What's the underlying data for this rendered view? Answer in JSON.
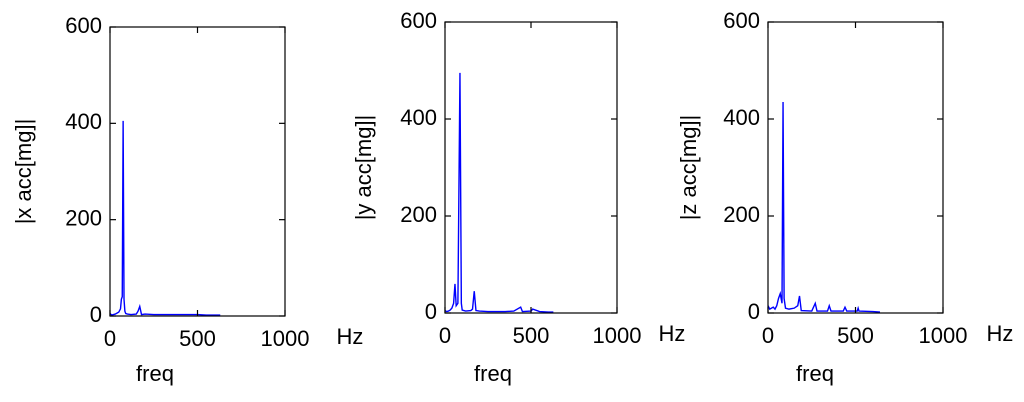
{
  "chart_data": [
    {
      "type": "line",
      "ylabel": "|x acc[mg]|",
      "xlabel": "freq",
      "unit_label": "Hz",
      "xlim": [
        0,
        1000
      ],
      "xticks": [
        0,
        500,
        1000
      ],
      "ylim": [
        0,
        600
      ],
      "yticks": [
        0,
        200,
        400,
        600
      ],
      "color": "#0000ff",
      "x": [
        0,
        10,
        20,
        30,
        40,
        50,
        60,
        65,
        70,
        75,
        80,
        85,
        90,
        100,
        120,
        150,
        160,
        170,
        180,
        200,
        250,
        300,
        350,
        400,
        450,
        500,
        550,
        600,
        630
      ],
      "values": [
        5,
        2,
        3,
        4,
        6,
        8,
        15,
        35,
        40,
        405,
        35,
        10,
        5,
        4,
        3,
        4,
        10,
        20,
        3,
        4,
        3,
        3,
        3,
        3,
        3,
        3,
        2,
        2,
        2
      ]
    },
    {
      "type": "line",
      "ylabel": "|y acc[mg]|",
      "xlabel": "freq",
      "unit_label": "Hz",
      "xlim": [
        0,
        1000
      ],
      "xticks": [
        0,
        500,
        1000
      ],
      "ylim": [
        0,
        600
      ],
      "yticks": [
        0,
        200,
        400,
        600
      ],
      "color": "#0000ff",
      "x": [
        0,
        10,
        20,
        30,
        40,
        50,
        58,
        65,
        75,
        87,
        95,
        100,
        120,
        150,
        160,
        170,
        180,
        200,
        250,
        300,
        350,
        400,
        440,
        450,
        500,
        510,
        550,
        600,
        630
      ],
      "values": [
        5,
        3,
        4,
        6,
        10,
        20,
        60,
        15,
        20,
        495,
        20,
        6,
        4,
        5,
        8,
        45,
        5,
        4,
        3,
        3,
        3,
        4,
        12,
        3,
        4,
        8,
        3,
        2,
        2
      ]
    },
    {
      "type": "line",
      "ylabel": "|z acc[mg]|",
      "xlabel": "freq",
      "unit_label": "Hz",
      "xlim": [
        0,
        1000
      ],
      "xticks": [
        0,
        500,
        1000
      ],
      "ylim": [
        0,
        600
      ],
      "yticks": [
        0,
        200,
        400,
        600
      ],
      "color": "#0000ff",
      "x": [
        0,
        10,
        20,
        30,
        40,
        50,
        60,
        70,
        80,
        86,
        92,
        100,
        120,
        150,
        170,
        180,
        190,
        250,
        270,
        280,
        340,
        350,
        360,
        430,
        440,
        450,
        510,
        515,
        520,
        600,
        640
      ],
      "values": [
        15,
        8,
        10,
        12,
        8,
        15,
        30,
        40,
        20,
        435,
        30,
        10,
        8,
        10,
        15,
        35,
        5,
        4,
        20,
        4,
        4,
        15,
        4,
        4,
        12,
        4,
        4,
        10,
        4,
        3,
        2
      ]
    }
  ]
}
